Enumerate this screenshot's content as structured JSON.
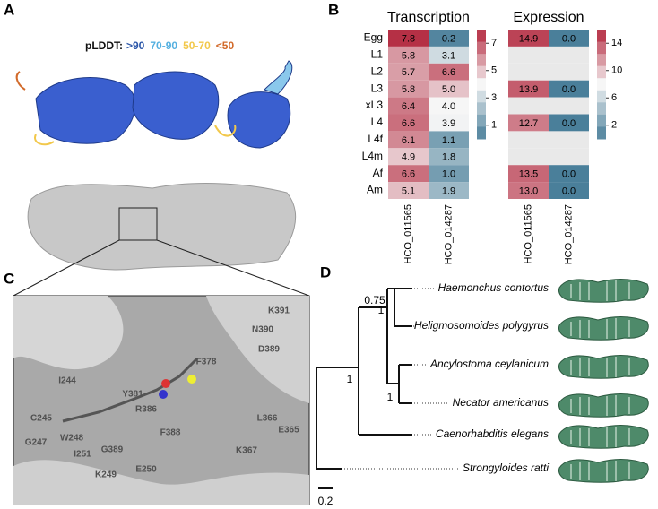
{
  "panels": {
    "a": "A",
    "b": "B",
    "c": "C",
    "d": "D"
  },
  "plddt": {
    "label": "pLDDT:",
    "bins": [
      {
        "label": ">90",
        "color": "#2a55a8"
      },
      {
        "label": "70-90",
        "color": "#55b0e0"
      },
      {
        "label": "50-70",
        "color": "#f2c84b"
      },
      {
        "label": "<50",
        "color": "#d26a2a"
      }
    ]
  },
  "heatmap": {
    "rows": [
      "Egg",
      "L1",
      "L2",
      "L3",
      "xL3",
      "L4",
      "L4f",
      "L4m",
      "Af",
      "Am"
    ],
    "blocks": [
      {
        "title": "Transcription",
        "columns": [
          "HCO_011565",
          "HCO_014287"
        ],
        "values": [
          [
            7.8,
            0.2
          ],
          [
            5.8,
            3.1
          ],
          [
            5.7,
            6.6
          ],
          [
            5.8,
            5.0
          ],
          [
            6.4,
            4.0
          ],
          [
            6.6,
            3.9
          ],
          [
            6.1,
            1.1
          ],
          [
            4.9,
            1.8
          ],
          [
            6.6,
            1.0
          ],
          [
            5.1,
            1.9
          ]
        ],
        "value_labels": [
          [
            "7.8",
            "0.2"
          ],
          [
            "5.8",
            "3.1"
          ],
          [
            "5.7",
            "6.6"
          ],
          [
            "5.8",
            "5.0"
          ],
          [
            "6.4",
            "4.0"
          ],
          [
            "6.6",
            "3.9"
          ],
          [
            "6.1",
            "1.1"
          ],
          [
            "4.9",
            "1.8"
          ],
          [
            "6.6",
            "1.0"
          ],
          [
            "5.1",
            "1.9"
          ]
        ],
        "colorlim": [
          0,
          8
        ],
        "colorticks": [
          7,
          5,
          3,
          1
        ]
      },
      {
        "title": "Expression",
        "columns": [
          "HCO_011565",
          "HCO_014287"
        ],
        "values": [
          [
            14.9,
            0.0
          ],
          [
            null,
            null
          ],
          [
            null,
            null
          ],
          [
            13.9,
            0.0
          ],
          [
            null,
            null
          ],
          [
            12.7,
            0.0
          ],
          [
            null,
            null
          ],
          [
            null,
            null
          ],
          [
            13.5,
            0.0
          ],
          [
            13.0,
            0.0
          ]
        ],
        "value_labels": [
          [
            "14.9",
            "0.0"
          ],
          [
            null,
            null
          ],
          [
            null,
            null
          ],
          [
            "13.9",
            "0.0"
          ],
          [
            null,
            null
          ],
          [
            "12.7",
            "0.0"
          ],
          [
            null,
            null
          ],
          [
            null,
            null
          ],
          [
            "13.5",
            "0.0"
          ],
          [
            "13.0",
            "0.0"
          ]
        ],
        "colorlim": [
          0,
          16
        ],
        "colorticks": [
          14,
          10,
          6,
          2
        ]
      }
    ]
  },
  "residues": [
    "K391",
    "N390",
    "D389",
    "F378",
    "I244",
    "Y381",
    "R386",
    "C245",
    "L366",
    "E365",
    "G247",
    "W248",
    "K367",
    "F388",
    "I251",
    "G389",
    "E250",
    "K249"
  ],
  "tree": {
    "leaves": [
      "Haemonchus contortus",
      "Heligmosomoides polygyrus",
      "Ancylostoma ceylanicum",
      "Necator americanus",
      "Caenorhabditis elegans",
      "Strongyloides ratti"
    ],
    "support": [
      "0.75",
      "1",
      "1",
      "1"
    ],
    "scale": "0.2"
  }
}
